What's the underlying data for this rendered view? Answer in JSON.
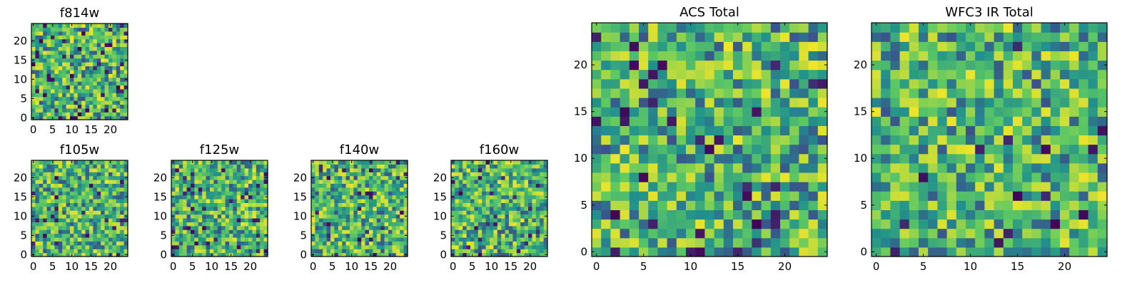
{
  "chart_data": [
    {
      "type": "heatmap",
      "title": "f814w",
      "grid": [
        25,
        25
      ],
      "xlim": [
        0,
        24
      ],
      "ylim": [
        0,
        24
      ],
      "xticks": [
        0,
        5,
        10,
        15,
        20
      ],
      "yticks": [
        0,
        5,
        10,
        15,
        20
      ],
      "seed": 11,
      "dark_fraction": 0.07
    },
    {
      "type": "heatmap",
      "title": "f105w",
      "grid": [
        25,
        25
      ],
      "xlim": [
        0,
        24
      ],
      "ylim": [
        0,
        24
      ],
      "xticks": [
        0,
        5,
        10,
        15,
        20
      ],
      "yticks": [
        0,
        5,
        10,
        15,
        20
      ],
      "seed": 23,
      "dark_fraction": 0.02
    },
    {
      "type": "heatmap",
      "title": "f125w",
      "grid": [
        25,
        25
      ],
      "xlim": [
        0,
        24
      ],
      "ylim": [
        0,
        24
      ],
      "xticks": [
        0,
        5,
        10,
        15,
        20
      ],
      "yticks": [
        0,
        5,
        10,
        15,
        20
      ],
      "seed": 37,
      "dark_fraction": 0.05
    },
    {
      "type": "heatmap",
      "title": "f140w",
      "grid": [
        25,
        25
      ],
      "xlim": [
        0,
        24
      ],
      "ylim": [
        0,
        24
      ],
      "xticks": [
        0,
        5,
        10,
        15,
        20
      ],
      "yticks": [
        0,
        5,
        10,
        15,
        20
      ],
      "seed": 41,
      "dark_fraction": 0.05
    },
    {
      "type": "heatmap",
      "title": "f160w",
      "grid": [
        25,
        25
      ],
      "xlim": [
        0,
        24
      ],
      "ylim": [
        0,
        24
      ],
      "xticks": [
        0,
        5,
        10,
        15,
        20
      ],
      "yticks": [
        0,
        5,
        10,
        15,
        20
      ],
      "seed": 53,
      "dark_fraction": 0.05
    },
    {
      "type": "heatmap",
      "title": "ACS Total",
      "grid": [
        25,
        25
      ],
      "xlim": [
        0,
        24
      ],
      "ylim": [
        0,
        24
      ],
      "xticks": [
        0,
        5,
        10,
        15,
        20
      ],
      "yticks": [
        0,
        5,
        10,
        15,
        20
      ],
      "seed": 67,
      "dark_fraction": 0.03
    },
    {
      "type": "heatmap",
      "title": "WFC3 IR Total",
      "grid": [
        25,
        25
      ],
      "xlim": [
        0,
        24
      ],
      "ylim": [
        0,
        24
      ],
      "xticks": [
        0,
        5,
        10,
        15,
        20
      ],
      "yticks": [
        0,
        5,
        10,
        15,
        20
      ],
      "seed": 79,
      "dark_fraction": 0.03
    }
  ],
  "colormap": [
    "#440154",
    "#3b528b",
    "#21918c",
    "#5ec962",
    "#fde725"
  ]
}
